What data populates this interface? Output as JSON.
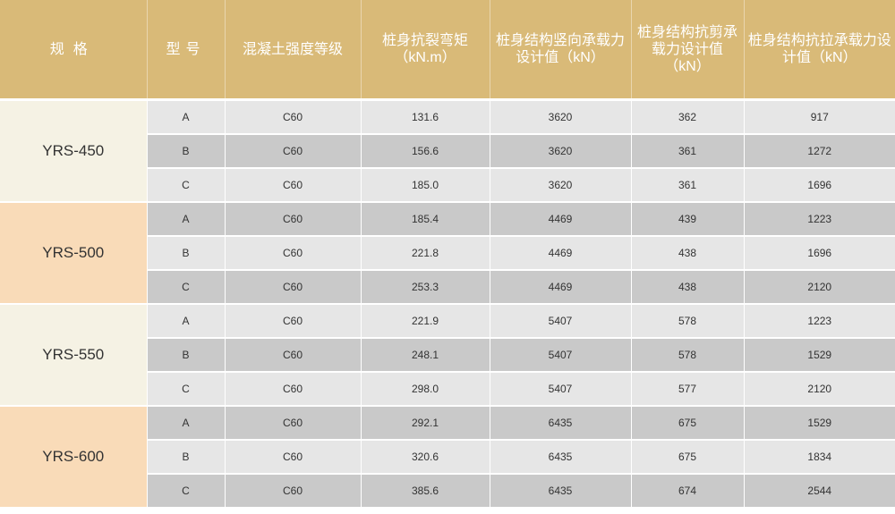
{
  "table": {
    "headers": [
      "规格",
      "型号",
      "混凝土强度等级",
      "桩身抗裂弯矩（kN.m）",
      "桩身结构竖向承载力设计值（kN）",
      "桩身结构抗剪承载力设计值（kN）",
      "桩身结构抗拉承载力设计值（kN）"
    ],
    "header_colors": {
      "header_bg": "#d9ba78",
      "spec_light": "#f5f2e4",
      "spec_peach": "#f9dbb8",
      "row_light": "#e6e6e6",
      "row_dark": "#c9c9c9"
    },
    "groups": [
      {
        "spec": "YRS-450",
        "rows": [
          [
            "A",
            "C60",
            "131.6",
            "3620",
            "362",
            "917"
          ],
          [
            "B",
            "C60",
            "156.6",
            "3620",
            "361",
            "1272"
          ],
          [
            "C",
            "C60",
            "185.0",
            "3620",
            "361",
            "1696"
          ]
        ]
      },
      {
        "spec": "YRS-500",
        "rows": [
          [
            "A",
            "C60",
            "185.4",
            "4469",
            "439",
            "1223"
          ],
          [
            "B",
            "C60",
            "221.8",
            "4469",
            "438",
            "1696"
          ],
          [
            "C",
            "C60",
            "253.3",
            "4469",
            "438",
            "2120"
          ]
        ]
      },
      {
        "spec": "YRS-550",
        "rows": [
          [
            "A",
            "C60",
            "221.9",
            "5407",
            "578",
            "1223"
          ],
          [
            "B",
            "C60",
            "248.1",
            "5407",
            "578",
            "1529"
          ],
          [
            "C",
            "C60",
            "298.0",
            "5407",
            "577",
            "2120"
          ]
        ]
      },
      {
        "spec": "YRS-600",
        "rows": [
          [
            "A",
            "C60",
            "292.1",
            "6435",
            "675",
            "1529"
          ],
          [
            "B",
            "C60",
            "320.6",
            "6435",
            "675",
            "1834"
          ],
          [
            "C",
            "C60",
            "385.6",
            "6435",
            "674",
            "2544"
          ]
        ]
      }
    ]
  }
}
